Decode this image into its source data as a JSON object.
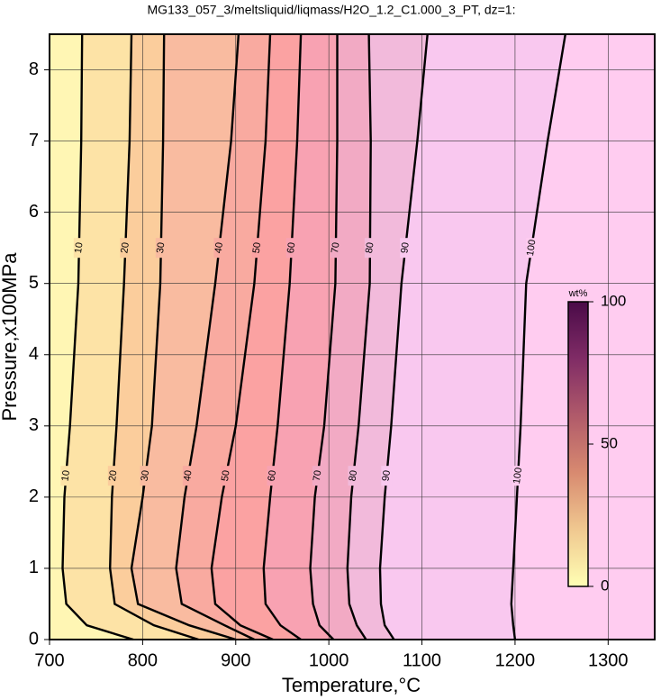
{
  "chart_data": {
    "type": "contour",
    "title": "MG133_057_3/meltsliquid/liqmass/H2O_1.2_C1.000_3_PT, dz=1:",
    "xlabel": "Temperature,°C",
    "ylabel": "Pressure,x100MPa",
    "xlim": [
      700,
      1350
    ],
    "ylim": [
      0,
      8.5
    ],
    "xticks": [
      700,
      800,
      900,
      1000,
      1100,
      1200,
      1300
    ],
    "yticks": [
      0,
      1,
      2,
      3,
      4,
      5,
      6,
      7,
      8
    ],
    "grid": true,
    "y": [
      0,
      0.2,
      0.5,
      1,
      2,
      3,
      5,
      7,
      8.5
    ],
    "contours": [
      {
        "level": 10,
        "x": [
          790,
          740,
          718,
          714,
          716,
          722,
          731,
          734,
          735
        ]
      },
      {
        "level": 20,
        "x": [
          860,
          812,
          770,
          765,
          767,
          772,
          780,
          786,
          788
        ]
      },
      {
        "level": 30,
        "x": [
          900,
          850,
          795,
          788,
          800,
          810,
          819,
          822,
          823
        ]
      },
      {
        "level": 40,
        "x": [
          920,
          888,
          842,
          836,
          845,
          858,
          878,
          895,
          903
        ]
      },
      {
        "level": 50,
        "x": [
          940,
          905,
          878,
          874,
          885,
          900,
          920,
          932,
          937
        ]
      },
      {
        "level": 60,
        "x": [
          970,
          948,
          932,
          930,
          937,
          945,
          958,
          966,
          970
        ]
      },
      {
        "level": 70,
        "x": [
          1005,
          990,
          983,
          980,
          985,
          995,
          1007,
          1009,
          1009
        ]
      },
      {
        "level": 80,
        "x": [
          1040,
          1030,
          1022,
          1020,
          1024,
          1032,
          1044,
          1045,
          1043
        ]
      },
      {
        "level": 90,
        "x": [
          1070,
          1060,
          1056,
          1055,
          1060,
          1067,
          1078,
          1095,
          1106
        ]
      },
      {
        "level": 100,
        "x": [
          1200,
          1198,
          1196,
          1198,
          1202,
          1206,
          1212,
          1235,
          1254
        ]
      }
    ],
    "band_colors": [
      "#fff6b4",
      "#fde3a6",
      "#fbcd9c",
      "#f9bba0",
      "#f9aaa0",
      "#fba2a2",
      "#f8a2b2",
      "#f2aac4",
      "#f2badb",
      "#f9c8ef",
      "#ffccf0"
    ],
    "colorbar": {
      "label": "wt%",
      "lim": [
        0,
        100
      ],
      "ticks": [
        0,
        50,
        100
      ],
      "colors": [
        "#ffffb4",
        "#f0c890",
        "#d88a70",
        "#b05a6a",
        "#802c66",
        "#4a0a48"
      ]
    }
  }
}
